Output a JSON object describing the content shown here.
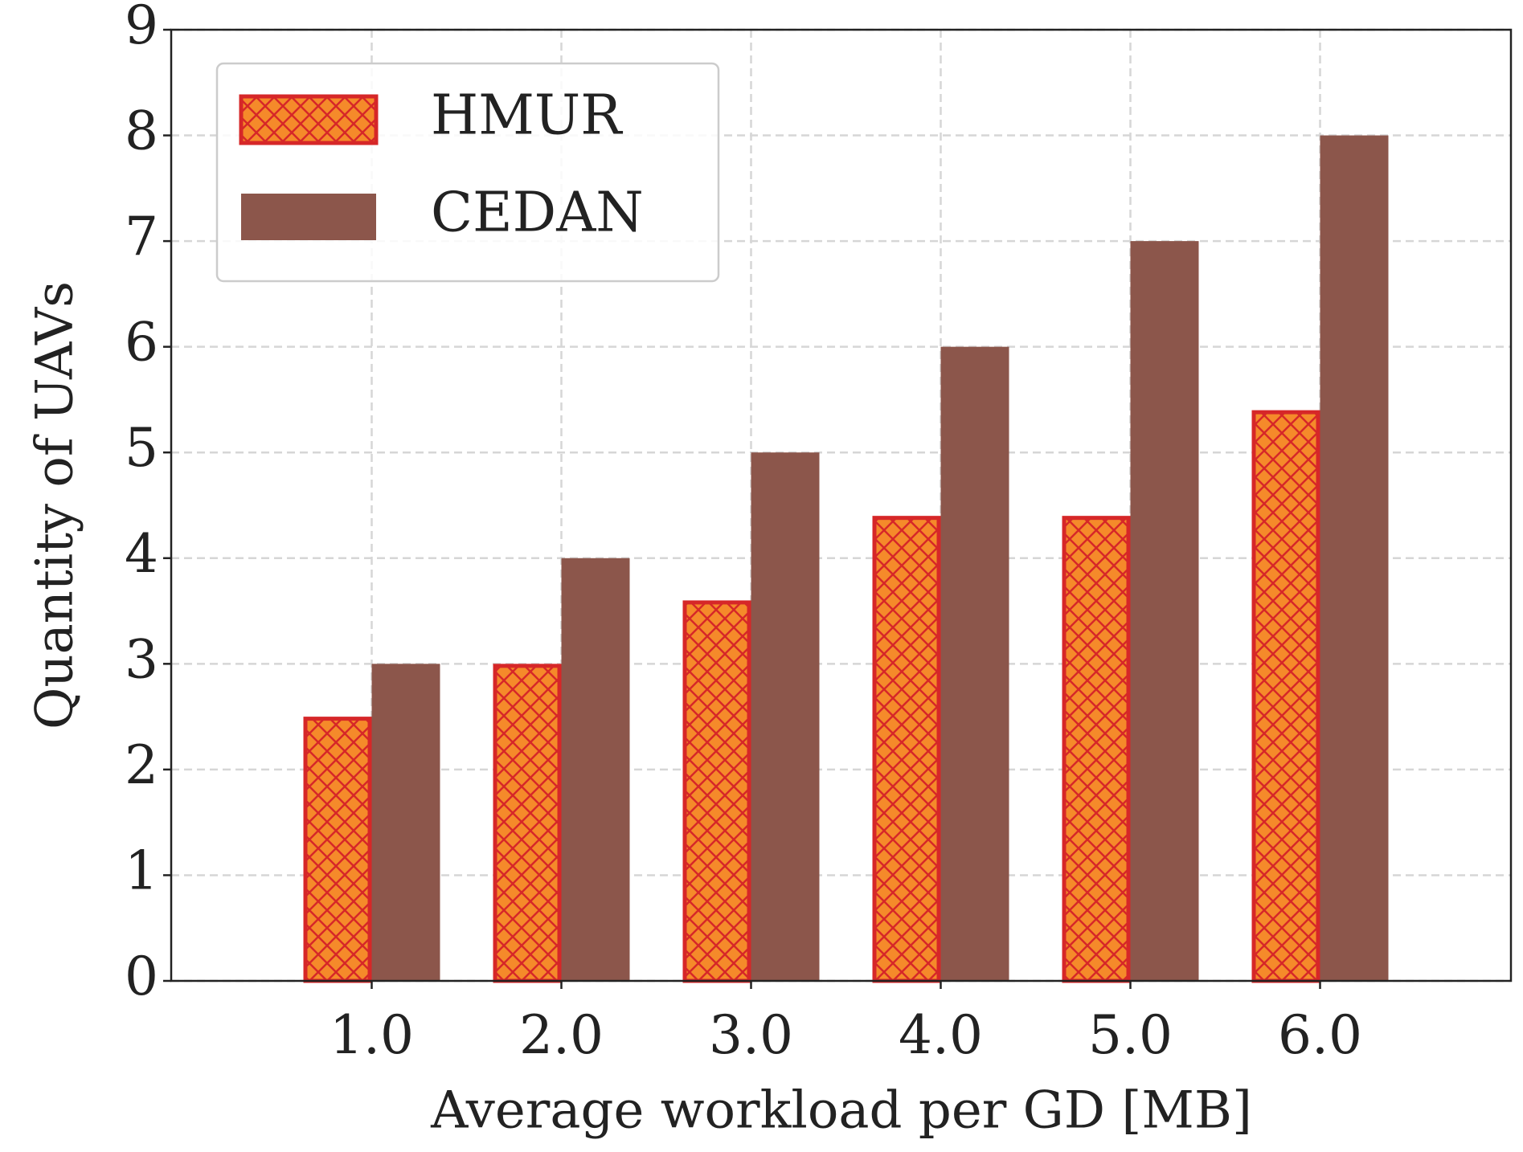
{
  "chart_data": {
    "type": "bar",
    "x_label": "Average workload per GD [MB]",
    "y_label": "Quantity of UAVs",
    "categories": [
      "1.0",
      "2.0",
      "3.0",
      "4.0",
      "5.0",
      "6.0"
    ],
    "series": [
      {
        "name": "HMUR",
        "color": "#f58a2a",
        "edge_color": "#d62728",
        "hatch": "xx",
        "values": [
          2.5,
          3.0,
          3.6,
          4.4,
          4.4,
          5.4
        ]
      },
      {
        "name": "CEDAN",
        "color": "#8c564b",
        "values": [
          3,
          4,
          5,
          6,
          7,
          8
        ]
      }
    ],
    "ylim": [
      0,
      9
    ],
    "yticks": [
      0,
      1,
      2,
      3,
      4,
      5,
      6,
      7,
      8,
      9
    ],
    "grid": true,
    "legend": "upper left"
  }
}
